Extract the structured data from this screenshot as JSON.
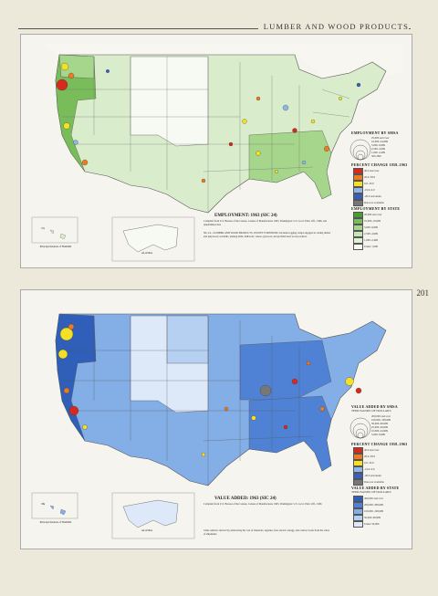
{
  "header": {
    "title": "LUMBER AND WOOD PRODUCTS",
    "page_number": "201"
  },
  "top_map": {
    "caption_title": "EMPLOYMENT: 1963 (SIC 24)",
    "caption_source": "Compiled from U.S. Bureau of the Census, Census of Manufactures 1963, Washington: U.S. Govt. Print. Off., 1966, and unpublished data",
    "legend_circles_title": "EMPLOYMENT BY SMSA",
    "legend_circles": [
      "25,000 and over",
      "10,000–24,999",
      "5,000–9,999",
      "2,500–4,999",
      "1,000–2,499",
      "500–999"
    ],
    "legend_change_title": "PERCENT CHANGE 1958–1963",
    "legend_change": [
      "40.0 and over",
      "20.0–39.9",
      "0.0–19.9",
      "-19.9–0.0",
      "-20.0 and under",
      "Data not available"
    ],
    "legend_change_colors": [
      "#d62a1f",
      "#f07a22",
      "#f4e024",
      "#8fb6e8",
      "#3a5fb8",
      "#777777"
    ],
    "legend_state_title": "EMPLOYMENT BY STATE",
    "legend_state": [
      "20,000 and over",
      "10,000–19,999",
      "5,000–9,999",
      "2,500–4,999",
      "1,000–2,499",
      "Under 1,000"
    ],
    "legend_state_colors": [
      "#4a9c32",
      "#79bd5a",
      "#a6d68c",
      "#c7e6b5",
      "#e1f1d7",
      "#f7faf3"
    ],
    "inset_hawaii": "Principal Islands of HAWAII",
    "inset_alaska": "ALASKA",
    "description": "SIC 24—LUMBER AND WOOD PRODUCTS, EXCEPT FURNITURE: Includes logging camps engaged in cutting timber and pulpwood; sawmills, planing mills, millwork, veneer, plywood, and prefabricated wood products."
  },
  "bottom_map": {
    "caption_title": "VALUE ADDED: 1963 (SIC 24)",
    "caption_source": "Compiled from U.S. Bureau of the Census, Census of Manufactures 1963, Washington: U.S. Govt. Print. Off., 1966",
    "legend_circles_title": "VALUE ADDED BY SMSA",
    "legend_circles_sub": "THOUSANDS OF DOLLARS",
    "legend_circles": [
      "200,000 and over",
      "100,000–199,999",
      "50,000–99,999",
      "25,000–49,999",
      "10,000–24,999",
      "5,000–9,999"
    ],
    "legend_change_title": "PERCENT CHANGE 1958–1963",
    "legend_change": [
      "40.0 and over",
      "20.0–39.9",
      "0.0–19.9",
      "-19.9–0.0",
      "-20.0 and under",
      "Data not available"
    ],
    "legend_change_colors": [
      "#d62a1f",
      "#f07a22",
      "#f4e024",
      "#8fb6e8",
      "#3a5fb8",
      "#777777"
    ],
    "legend_state_title": "VALUE ADDED BY STATE",
    "legend_state_sub": "THOUSANDS OF DOLLARS",
    "legend_state": [
      "400,000 and over",
      "200,000–399,999",
      "100,000–199,999",
      "50,000–99,999",
      "Under 50,000"
    ],
    "legend_state_colors": [
      "#2f5fb8",
      "#4f82d4",
      "#84aee6",
      "#b6d0f1",
      "#dde9f8"
    ],
    "inset_hawaii": "Principal Islands of HAWAII",
    "inset_alaska": "ALASKA",
    "description": "Value added is derived by subtracting the cost of materials, supplies, fuel, electric energy, and contract work from the value of shipments."
  }
}
